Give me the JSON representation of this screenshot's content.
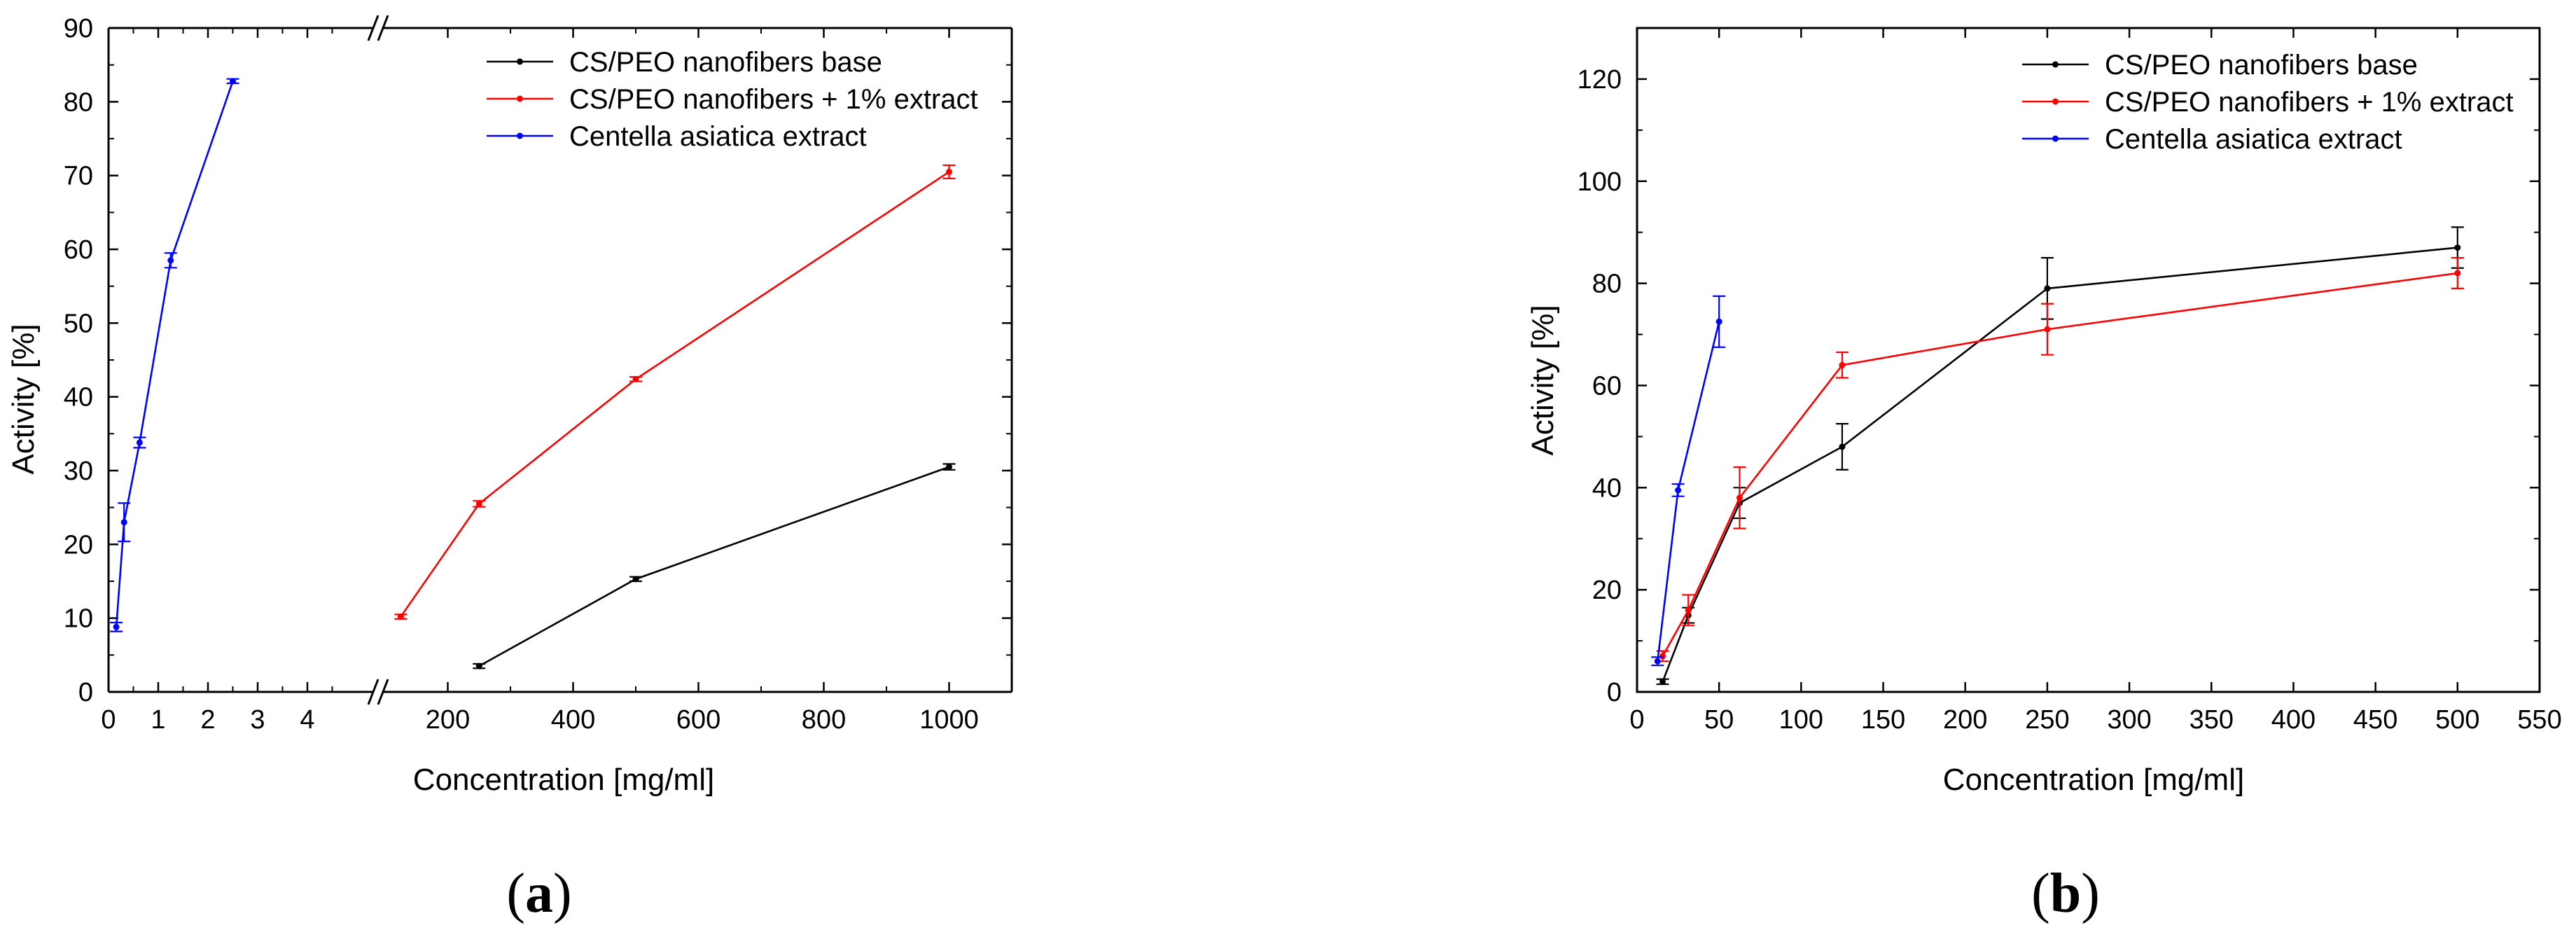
{
  "chart_data": [
    {
      "type": "line",
      "panel_label": "a",
      "xlabel": "Concentration [mg/ml]",
      "ylabel": "Activity [%]",
      "ylim": [
        0,
        90
      ],
      "y_ticks": [
        0,
        10,
        20,
        30,
        40,
        50,
        60,
        70,
        80,
        90
      ],
      "x_axis_break": true,
      "x_segments": [
        {
          "range": [
            0,
            5
          ],
          "ticks": [
            0,
            1,
            2,
            3,
            4
          ]
        },
        {
          "range": [
            100,
            1100
          ],
          "ticks": [
            200,
            400,
            600,
            800,
            1000
          ]
        }
      ],
      "legend_position": "top-right",
      "series": [
        {
          "name": "CS/PEO nanofibers base",
          "color": "#000000",
          "segment": 1,
          "x": [
            250,
            500,
            1000
          ],
          "y": [
            3.5,
            15.3,
            30.5
          ],
          "err": [
            0.3,
            0.3,
            0.4
          ]
        },
        {
          "name": "CS/PEO nanofibers + 1% extract",
          "color": "#ff0000",
          "segment": 1,
          "x": [
            125,
            250,
            500,
            1000
          ],
          "y": [
            10.2,
            25.5,
            42.4,
            70.5
          ],
          "err": [
            0.3,
            0.4,
            0.3,
            0.9
          ]
        },
        {
          "name": "Centella asiatica extract",
          "color": "#0000ff",
          "segment": 0,
          "x": [
            0.156,
            0.3125,
            0.625,
            1.25,
            2.5
          ],
          "y": [
            8.8,
            23.0,
            33.8,
            58.5,
            82.8
          ],
          "err": [
            0.6,
            2.6,
            0.7,
            1.0,
            0.3
          ]
        }
      ]
    },
    {
      "type": "line",
      "panel_label": "b",
      "xlabel": "Concentration [mg/ml]",
      "ylabel": "Activity [%]",
      "ylim": [
        0,
        130
      ],
      "xlim": [
        0,
        550
      ],
      "y_ticks": [
        0,
        20,
        40,
        60,
        80,
        100,
        120
      ],
      "x_ticks": [
        0,
        50,
        100,
        150,
        200,
        250,
        300,
        350,
        400,
        450,
        500,
        550
      ],
      "legend_position": "top-right",
      "series": [
        {
          "name": "CS/PEO nanofibers base",
          "color": "#000000",
          "x": [
            15.6,
            31.25,
            62.5,
            125,
            250,
            500
          ],
          "y": [
            2,
            15,
            37,
            48,
            79,
            87
          ],
          "err": [
            0.5,
            1.5,
            3,
            4.5,
            6,
            4
          ]
        },
        {
          "name": "CS/PEO nanofibers + 1% extract",
          "color": "#ff0000",
          "x": [
            15.6,
            31.25,
            62.5,
            125,
            250,
            500
          ],
          "y": [
            7,
            16,
            38,
            64,
            71,
            82
          ],
          "err": [
            1,
            3,
            6,
            2.5,
            5,
            3
          ]
        },
        {
          "name": "Centella asiatica extract",
          "color": "#0000ff",
          "x": [
            12.5,
            25,
            50
          ],
          "y": [
            6,
            39.5,
            72.5
          ],
          "err": [
            0.8,
            1.2,
            5
          ]
        }
      ]
    }
  ]
}
